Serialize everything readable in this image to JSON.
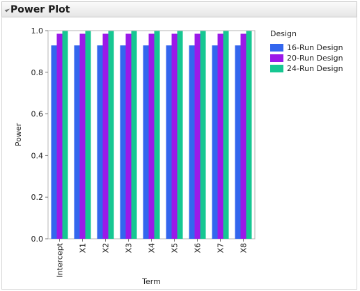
{
  "header": {
    "title": "Power Plot"
  },
  "chart_data": {
    "type": "bar",
    "xlabel": "Term",
    "ylabel": "Power",
    "ylim": [
      0,
      1
    ],
    "yticks": [
      "0.0",
      "0.2",
      "0.4",
      "0.6",
      "0.8",
      "1.0"
    ],
    "grid": false,
    "categories": [
      "Intercept",
      "X1",
      "X2",
      "X3",
      "X4",
      "X5",
      "X6",
      "X7",
      "X8"
    ],
    "series": [
      {
        "name": "16-Run Design",
        "color": "#3366ee",
        "values": [
          0.929,
          0.929,
          0.929,
          0.929,
          0.929,
          0.929,
          0.929,
          0.929,
          0.929
        ]
      },
      {
        "name": "20-Run Design",
        "color": "#9b19e8",
        "values": [
          0.985,
          0.985,
          0.985,
          0.985,
          0.985,
          0.985,
          0.985,
          0.985,
          0.985
        ]
      },
      {
        "name": "24-Run Design",
        "color": "#16c792",
        "values": [
          0.998,
          0.998,
          0.998,
          0.998,
          0.998,
          0.998,
          0.998,
          0.998,
          0.998
        ]
      }
    ],
    "legend": {
      "title": "Design",
      "position": "right"
    }
  }
}
